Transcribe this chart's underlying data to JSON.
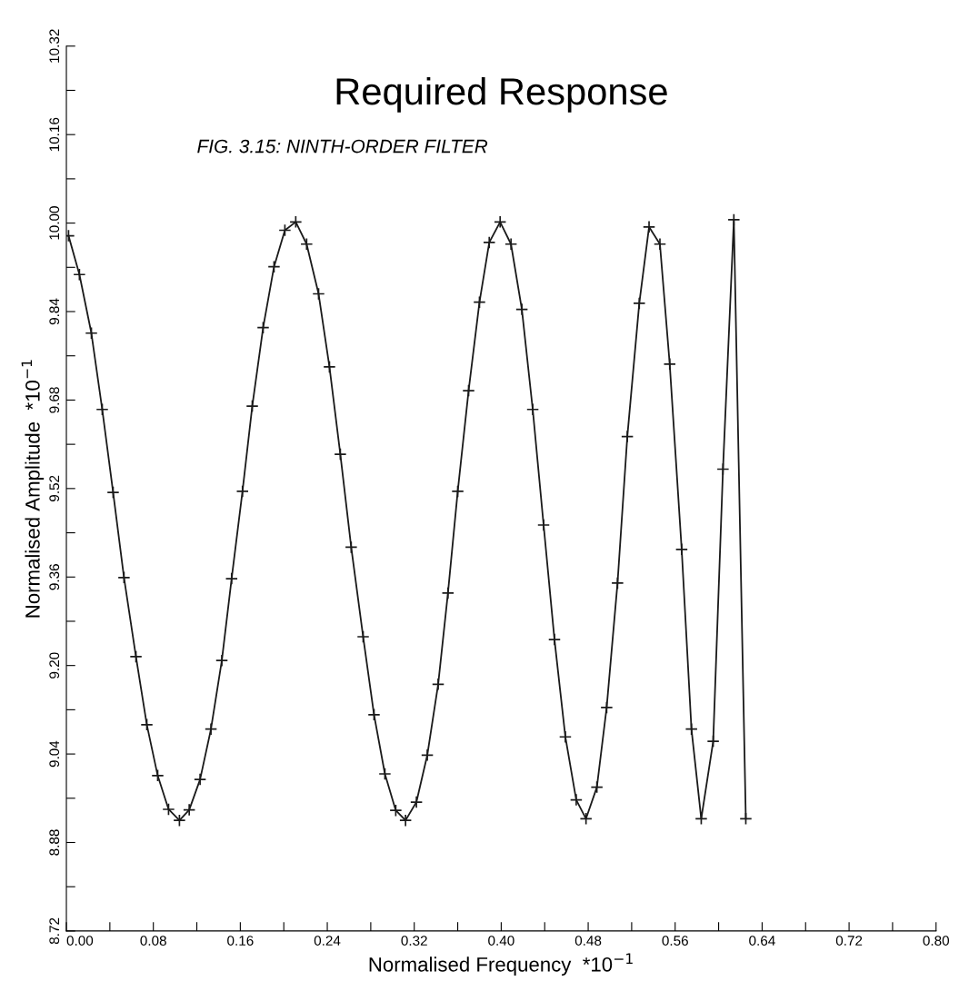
{
  "chart_data": {
    "type": "line",
    "title": "Required Response",
    "subtitle": "FIG. 3.15: NINTH-ORDER FILTER",
    "xlabel": "Normalised Frequency  *10$^{−1}$",
    "ylabel": "Normalised Amplitude  *10$^{−1}$",
    "x": [
      0.002,
      0.012,
      0.023,
      0.033,
      0.043,
      0.053,
      0.064,
      0.074,
      0.084,
      0.094,
      0.104,
      0.113,
      0.123,
      0.133,
      0.143,
      0.152,
      0.162,
      0.171,
      0.181,
      0.191,
      0.201,
      0.211,
      0.221,
      0.232,
      0.242,
      0.252,
      0.262,
      0.273,
      0.283,
      0.293,
      0.303,
      0.312,
      0.322,
      0.332,
      0.342,
      0.351,
      0.36,
      0.37,
      0.38,
      0.389,
      0.399,
      0.409,
      0.419,
      0.429,
      0.439,
      0.449,
      0.459,
      0.469,
      0.478,
      0.488,
      0.497,
      0.507,
      0.516,
      0.527,
      0.536,
      0.546,
      0.555,
      0.566,
      0.575,
      0.584,
      0.595,
      0.604,
      0.614,
      0.625
    ],
    "series": [
      {
        "color": "#1a1a1a",
        "values": [
          9.977,
          9.907,
          9.801,
          9.663,
          9.513,
          9.359,
          9.216,
          9.093,
          9.001,
          8.94,
          8.92,
          8.939,
          8.994,
          9.085,
          9.209,
          9.357,
          9.515,
          9.669,
          9.811,
          9.921,
          9.987,
          10.002,
          9.962,
          9.872,
          9.74,
          9.582,
          9.414,
          9.252,
          9.111,
          9.004,
          8.938,
          8.92,
          8.953,
          9.038,
          9.166,
          9.331,
          9.515,
          9.697,
          9.857,
          9.965,
          10.002,
          9.962,
          9.844,
          9.663,
          9.454,
          9.247,
          9.071,
          8.957,
          8.923,
          8.98,
          9.124,
          9.349,
          9.614,
          9.855,
          9.993,
          9.962,
          9.745,
          9.41,
          9.085,
          8.923,
          9.063,
          9.555,
          10.006,
          8.923
        ]
      }
    ],
    "xlim": [
      0.0,
      0.8
    ],
    "ylim": [
      8.72,
      10.32
    ],
    "xticks": [
      {
        "value": 0.0,
        "label": "0.00"
      },
      {
        "value": 0.04,
        "label": null
      },
      {
        "value": 0.08,
        "label": "0.08"
      },
      {
        "value": 0.12,
        "label": null
      },
      {
        "value": 0.16,
        "label": "0.16"
      },
      {
        "value": 0.2,
        "label": null
      },
      {
        "value": 0.24,
        "label": "0.24"
      },
      {
        "value": 0.28,
        "label": null
      },
      {
        "value": 0.32,
        "label": "0.32"
      },
      {
        "value": 0.36,
        "label": null
      },
      {
        "value": 0.4,
        "label": "0.40"
      },
      {
        "value": 0.44,
        "label": null
      },
      {
        "value": 0.48,
        "label": "0.48"
      },
      {
        "value": 0.52,
        "label": null
      },
      {
        "value": 0.56,
        "label": "0.56"
      },
      {
        "value": 0.6,
        "label": null
      },
      {
        "value": 0.64,
        "label": "0.64"
      },
      {
        "value": 0.68,
        "label": null
      },
      {
        "value": 0.72,
        "label": "0.72"
      },
      {
        "value": 0.76,
        "label": null
      },
      {
        "value": 0.8,
        "label": "0.80"
      }
    ],
    "yticks": [
      8.72,
      {
        "value": 8.8,
        "label": null
      },
      8.88,
      {
        "value": 8.96,
        "label": null
      },
      9.04,
      {
        "value": 9.12,
        "label": null
      },
      {
        "value": 9.2,
        "label": "9.20"
      },
      {
        "value": 9.28,
        "label": null
      },
      9.36,
      {
        "value": 9.44,
        "label": null
      },
      9.52,
      {
        "value": 9.6,
        "label": null
      },
      9.68,
      {
        "value": 9.76,
        "label": null
      },
      9.84,
      {
        "value": 9.92,
        "label": null
      },
      {
        "value": 10.0,
        "label": "10.00"
      },
      {
        "value": 10.08,
        "label": null
      },
      10.16,
      {
        "value": 10.24,
        "label": null
      },
      10.32
    ],
    "marker": "cross",
    "line_style": "solid",
    "grid": false,
    "legend": false
  }
}
